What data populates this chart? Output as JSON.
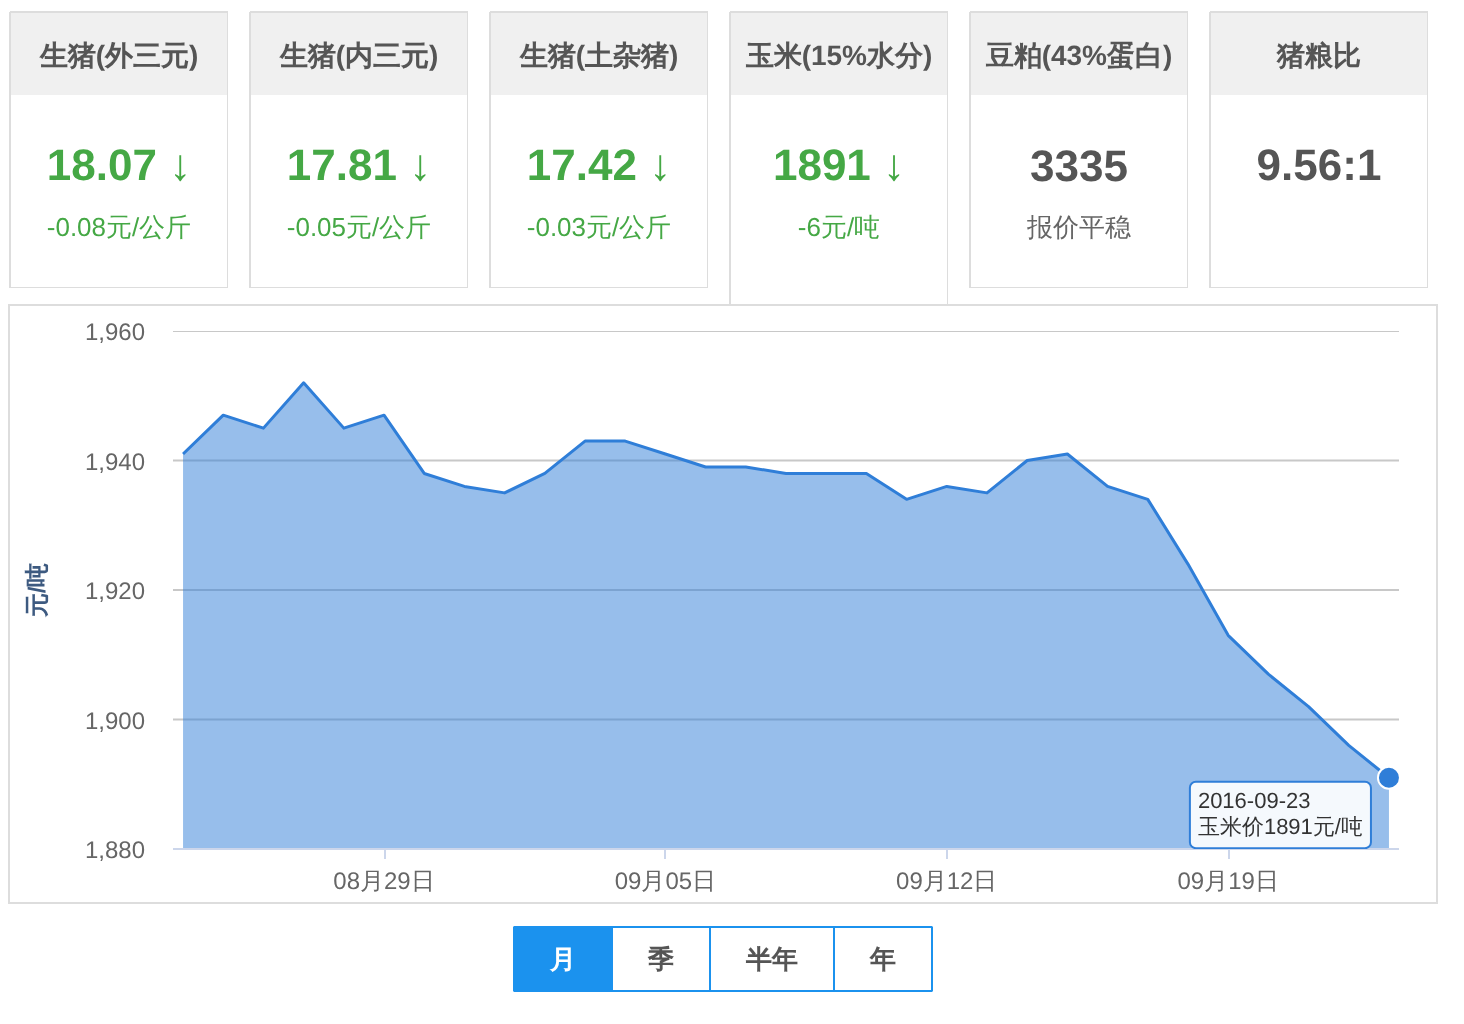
{
  "chart_data": [
    {
      "type": "other",
      "title": "生猪(外三元)",
      "annotations": [
        "18.07 ↓",
        "-0.08元/公斤"
      ],
      "colors": [
        "#45a845",
        "#45a845"
      ]
    },
    {
      "type": "other",
      "title": "生猪(内三元)",
      "annotations": [
        "17.81 ↓",
        "-0.05元/公斤"
      ],
      "colors": [
        "#45a845",
        "#45a845"
      ]
    },
    {
      "type": "other",
      "title": "生猪(土杂猪)",
      "annotations": [
        "17.42 ↓",
        "-0.03元/公斤"
      ],
      "colors": [
        "#45a845",
        "#45a845"
      ]
    },
    {
      "type": "other",
      "title": "玉米(15%水分)",
      "annotations": [
        "1891 ↓",
        "-6元/吨"
      ],
      "colors": [
        "#45a845",
        "#45a845"
      ]
    },
    {
      "type": "other",
      "title": "豆粕(43%蛋白)",
      "annotations": [
        "3335",
        "报价平稳"
      ],
      "colors": [
        "#555555",
        "#666666"
      ]
    },
    {
      "type": "other",
      "title": "猪粮比",
      "annotations": [
        "9.56:1"
      ],
      "colors": [
        "#555555"
      ]
    },
    {
      "type": "area",
      "ylabel": "元/吨",
      "x": [
        "2016-08-24",
        "2016-08-25",
        "2016-08-26",
        "2016-08-27",
        "2016-08-28",
        "2016-08-29",
        "2016-08-30",
        "2016-08-31",
        "2016-09-01",
        "2016-09-02",
        "2016-09-03",
        "2016-09-04",
        "2016-09-05",
        "2016-09-06",
        "2016-09-07",
        "2016-09-08",
        "2016-09-09",
        "2016-09-10",
        "2016-09-11",
        "2016-09-12",
        "2016-09-13",
        "2016-09-14",
        "2016-09-15",
        "2016-09-16",
        "2016-09-17",
        "2016-09-18",
        "2016-09-19",
        "2016-09-20",
        "2016-09-21",
        "2016-09-22",
        "2016-09-23"
      ],
      "series": [
        {
          "color": "#2f7ed8",
          "values": [
            1941,
            1947,
            1945,
            1952,
            1945,
            1947,
            1938,
            1936,
            1935,
            1938,
            1943,
            1943,
            1941,
            1939,
            1939,
            1938,
            1938,
            1938,
            1934,
            1936,
            1935,
            1940,
            1941,
            1936,
            1934,
            1924,
            1913,
            1907,
            1902,
            1896,
            1891
          ]
        }
      ],
      "xlim": [
        "2016-08-23T18:00",
        "2016-09-23T06:00"
      ],
      "ylim": [
        1880,
        1960
      ],
      "xticks": [
        {
          "value": "2016-08-29",
          "label": "08月29日"
        },
        {
          "value": "2016-09-05",
          "label": "09月05日"
        },
        {
          "value": "2016-09-12",
          "label": "09月12日"
        },
        {
          "value": "2016-09-19",
          "label": "09月19日"
        }
      ],
      "yticks": [
        {
          "value": 1880,
          "label": "1,880"
        },
        {
          "value": 1900,
          "label": "1,900"
        },
        {
          "value": 1920,
          "label": "1,920"
        },
        {
          "value": 1940,
          "label": "1,940"
        },
        {
          "value": 1960,
          "label": "1,960"
        }
      ],
      "grid": "y",
      "annotations": [
        {
          "text": "2016-09-23\n玉米价1891元/吨",
          "x": "2016-09-23",
          "y": 1891
        }
      ]
    },
    {
      "type": "other",
      "annotations": [
        "月",
        "季",
        "半年",
        "年"
      ],
      "colors": [
        "#1b92ee",
        "#ffffff",
        "#ffffff",
        "#ffffff"
      ]
    }
  ]
}
